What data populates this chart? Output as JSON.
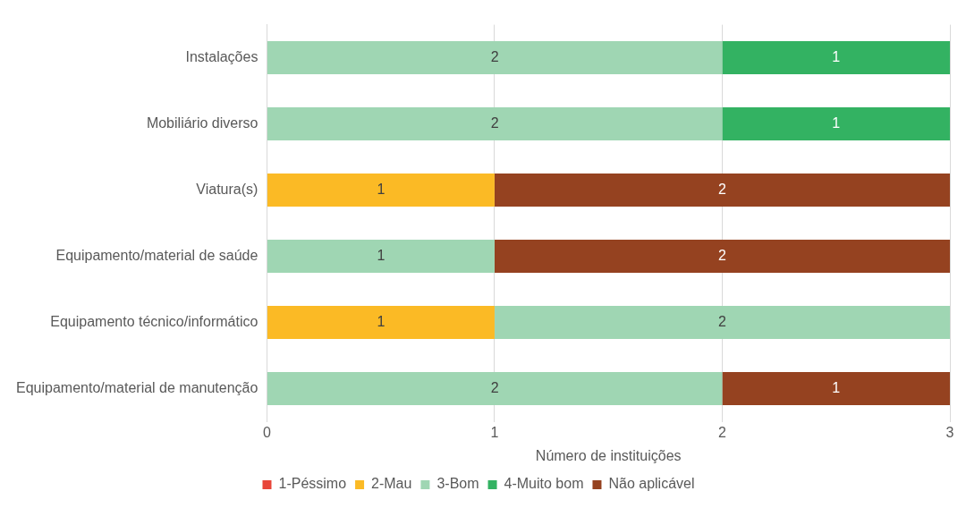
{
  "chart_data": {
    "type": "bar",
    "orientation": "horizontal",
    "stacked": true,
    "xlabel": "Número de instituições",
    "categories": [
      "Instalações",
      "Mobiliário diverso",
      "Viatura(s)",
      "Equipamento/material de saúde",
      "Equipamento técnico/informático",
      "Equipamento/material de manutenção"
    ],
    "series": [
      {
        "name": "1-Péssimo",
        "color": "#e8463a",
        "values": [
          null,
          null,
          null,
          null,
          null,
          null
        ]
      },
      {
        "name": "2-Mau",
        "color": "#fbba25",
        "values": [
          null,
          null,
          1,
          null,
          1,
          null
        ]
      },
      {
        "name": "3-Bom",
        "color": "#9fd6b3",
        "values": [
          2,
          2,
          null,
          1,
          2,
          2
        ]
      },
      {
        "name": "4-Muito bom",
        "color": "#33b262",
        "values": [
          1,
          1,
          null,
          null,
          null,
          null
        ]
      },
      {
        "name": "Não aplicável",
        "color": "#954220",
        "values": [
          null,
          null,
          2,
          2,
          null,
          1
        ]
      }
    ],
    "xlim": [
      0,
      3
    ],
    "xticks": [
      0,
      1,
      2,
      3
    ],
    "grid": "x",
    "legend": "bottom",
    "data_labels": true
  }
}
